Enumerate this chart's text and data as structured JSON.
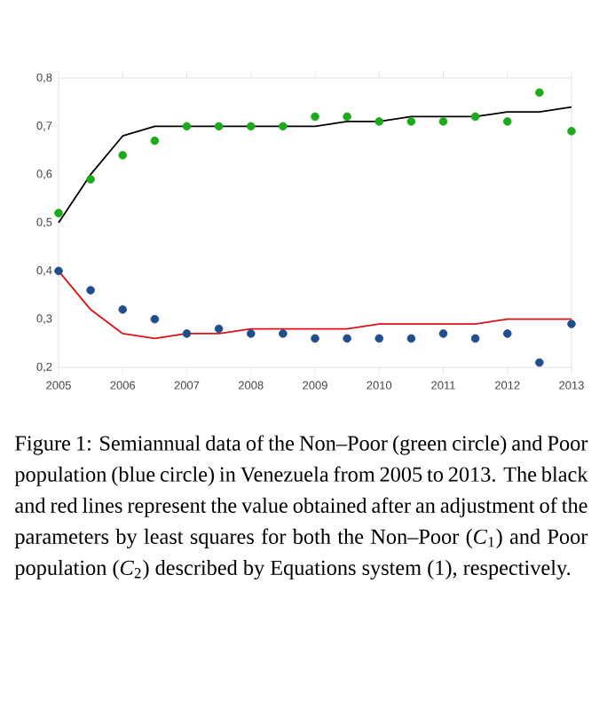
{
  "chart_data": {
    "type": "scatter",
    "x": [
      2005,
      2005.5,
      2006,
      2006.5,
      2007,
      2007.5,
      2008,
      2008.5,
      2009,
      2009.5,
      2010,
      2010.5,
      2011,
      2011.5,
      2012,
      2012.5,
      2013
    ],
    "series": [
      {
        "marker": "circle",
        "color": "#1aaa1a",
        "values": [
          0.52,
          0.59,
          0.64,
          0.67,
          0.7,
          0.7,
          0.7,
          0.7,
          0.72,
          0.72,
          0.71,
          0.71,
          0.71,
          0.72,
          0.71,
          0.77,
          0.69
        ]
      },
      {
        "marker": "circle",
        "color": "#1f4e8c",
        "values": [
          0.4,
          0.36,
          0.32,
          0.3,
          0.27,
          0.28,
          0.27,
          0.27,
          0.26,
          0.26,
          0.26,
          0.26,
          0.27,
          0.26,
          0.27,
          0.21,
          0.29
        ]
      },
      {
        "type": "line",
        "marker": "none",
        "color": "#000000",
        "values": [
          0.5,
          0.6,
          0.68,
          0.7,
          0.7,
          0.7,
          0.7,
          0.7,
          0.7,
          0.71,
          0.71,
          0.72,
          0.72,
          0.72,
          0.73,
          0.73,
          0.74
        ]
      },
      {
        "type": "line",
        "marker": "none",
        "color": "#dd1111",
        "values": [
          0.4,
          0.32,
          0.27,
          0.26,
          0.27,
          0.27,
          0.28,
          0.28,
          0.28,
          0.28,
          0.29,
          0.29,
          0.29,
          0.29,
          0.3,
          0.3,
          0.3
        ]
      }
    ],
    "xlim": [
      2005,
      2013
    ],
    "xticks": [
      2005,
      2006,
      2007,
      2008,
      2009,
      2010,
      2011,
      2012,
      2013
    ],
    "ylim": [
      0.2,
      0.8
    ],
    "yticks": [
      {
        "value": 0.2,
        "label": "0,2"
      },
      {
        "value": 0.3,
        "label": "0,3"
      },
      {
        "value": 0.4,
        "label": "0,4"
      },
      {
        "value": 0.5,
        "label": "0,5"
      },
      {
        "value": 0.6,
        "label": "0,6"
      },
      {
        "value": 0.7,
        "label": "0,7"
      },
      {
        "value": 0.8,
        "label": "0,8"
      }
    ],
    "grid": false,
    "annotations": [
      "Figure 1: Semiannual data of the Non–Poor (green circle) and Poor population (blue circle) in Venezuela from 2005 to 2013. The black and red lines represent the value obtained after an adjustment of the parameters by least squares for both the Non–Poor (*C*$_{1}$) and Poor population (*C*$_{2}$) described by Equations system (1), respectively."
    ]
  }
}
